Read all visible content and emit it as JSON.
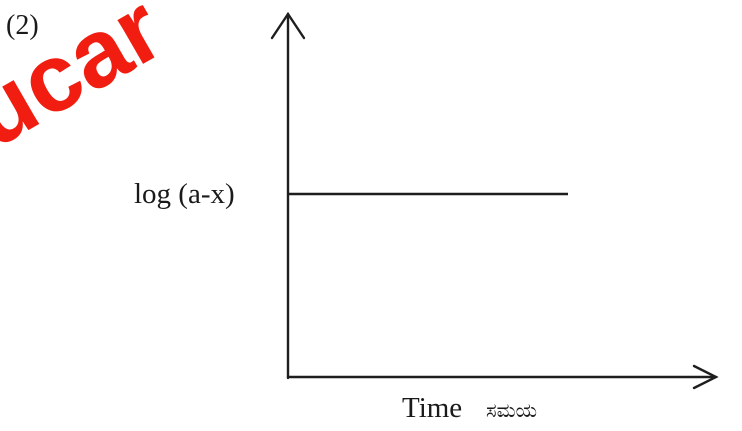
{
  "figure": {
    "label": "(2)"
  },
  "watermark": {
    "text": "ucar",
    "color": "#f11d10"
  },
  "chart_data": {
    "type": "line",
    "title": "",
    "xlabel": "Time",
    "xlabel_suffix": "ಸಮಯ",
    "ylabel": "log (a-x)",
    "ticks": "none",
    "grid": false,
    "legend": "none",
    "series": [
      {
        "x": [
          "0",
          "end"
        ],
        "y": [
          "log (a-x)",
          "log (a-x)"
        ],
        "shape": "horizontal"
      }
    ]
  }
}
